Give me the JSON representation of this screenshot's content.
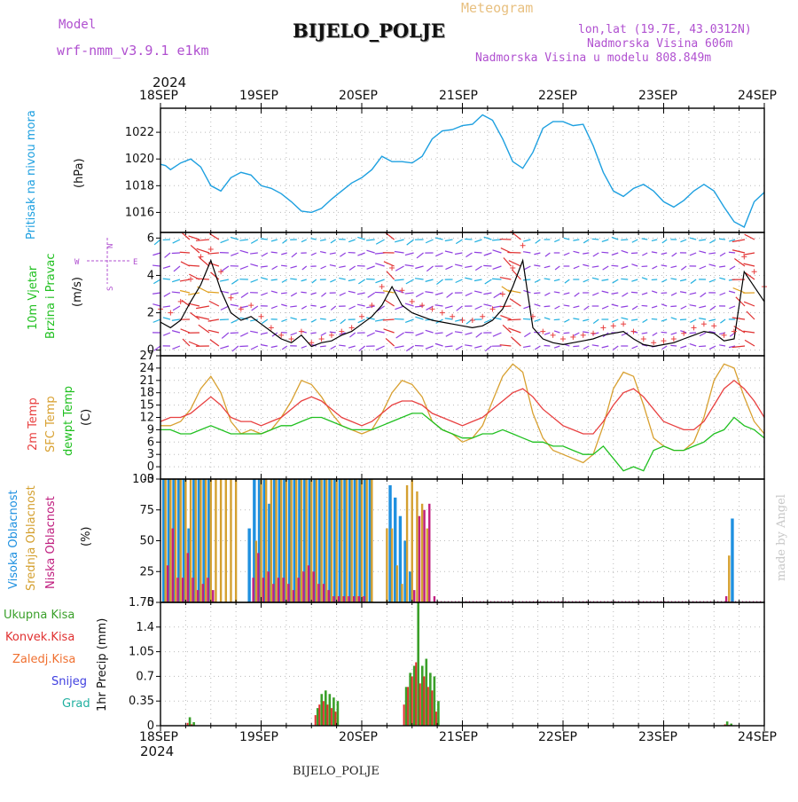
{
  "header": {
    "model_label": "Model",
    "model_name": "wrf-nmm_v3.9.1 e1km",
    "title": "BIJELO_POLJE",
    "product": "Meteogram",
    "coords": "lon,lat (19.7E, 43.0312N)",
    "elevation": "Nadmorska Visina 606m",
    "model_elevation": "Nadmorska Visina u modelu 808.849m",
    "year": "2024",
    "footer_station": "BIJELO_POLJE",
    "credit": "made by Angel"
  },
  "colors": {
    "pressure": "#1ea0e0",
    "wind_speed": "#000000",
    "gust": "#e84040",
    "temp_2m": "#e84040",
    "temp_sfc": "#d8a030",
    "dewpoint": "#20c020",
    "cloud_high": "#1e90e0",
    "cloud_mid": "#d4a030",
    "cloud_low": "#c02080",
    "precip_total": "#3aa02a",
    "precip_conv": "#e03030",
    "precip_frozen": "#f07030",
    "snow": "#4040e0",
    "hail": "#20b0a0"
  },
  "chart_data": [
    {
      "type": "line",
      "panel": "pressure",
      "ylabel_1": "Pritisak na nivou mora",
      "ylabel_2": "(hPa)",
      "x_ticks": [
        "18SEP",
        "19SEP",
        "20SEP",
        "21SEP",
        "22SEP",
        "23SEP",
        "24SEP"
      ],
      "ylim": [
        1014.5,
        1023.8
      ],
      "y_ticks": [
        1016,
        1018,
        1020,
        1022
      ],
      "grid": true,
      "x_days": [
        0,
        0.05,
        0.1,
        0.2,
        0.3,
        0.4,
        0.5,
        0.6,
        0.7,
        0.8,
        0.9,
        1.0,
        1.1,
        1.2,
        1.3,
        1.4,
        1.5,
        1.6,
        1.7,
        1.8,
        1.9,
        2.0,
        2.1,
        2.2,
        2.3,
        2.4,
        2.5,
        2.6,
        2.7,
        2.8,
        2.9,
        3.0,
        3.1,
        3.2,
        3.3,
        3.4,
        3.5,
        3.6,
        3.7,
        3.8,
        3.9,
        4.0,
        4.1,
        4.2,
        4.3,
        4.4,
        4.5,
        4.6,
        4.7,
        4.8,
        4.9,
        5.0,
        5.1,
        5.2,
        5.3,
        5.4,
        5.5,
        5.6,
        5.7,
        5.8,
        5.9,
        6.0
      ],
      "values": [
        1019.6,
        1019.5,
        1019.2,
        1019.7,
        1020.0,
        1019.4,
        1018.0,
        1017.6,
        1018.6,
        1019.0,
        1018.8,
        1018.0,
        1017.8,
        1017.4,
        1016.8,
        1016.1,
        1016.0,
        1016.3,
        1017.0,
        1017.6,
        1018.2,
        1018.6,
        1019.2,
        1020.2,
        1019.8,
        1019.8,
        1019.7,
        1020.2,
        1021.5,
        1022.1,
        1022.2,
        1022.5,
        1022.6,
        1023.3,
        1022.9,
        1021.5,
        1019.8,
        1019.3,
        1020.5,
        1022.3,
        1022.8,
        1022.8,
        1022.5,
        1022.6,
        1021.0,
        1019.0,
        1017.6,
        1017.2,
        1017.8,
        1018.1,
        1017.6,
        1016.8,
        1016.4,
        1016.9,
        1017.6,
        1018.1,
        1017.6,
        1016.4,
        1015.3,
        1014.9,
        1016.8,
        1017.5
      ]
    },
    {
      "type": "line",
      "panel": "wind",
      "ylabel_1": "10m Vjetar",
      "ylabel_2": "Brzina i Pravac",
      "ylabel_3": "(m/s)",
      "compass": [
        "N",
        "W",
        "E",
        "S"
      ],
      "ylim": [
        -0.3,
        6.3
      ],
      "y_ticks": [
        0,
        2,
        4,
        6
      ],
      "grid": true,
      "x_days": [
        0,
        0.1,
        0.2,
        0.3,
        0.4,
        0.5,
        0.6,
        0.7,
        0.8,
        0.9,
        1.0,
        1.1,
        1.2,
        1.3,
        1.4,
        1.5,
        1.6,
        1.7,
        1.8,
        1.9,
        2.0,
        2.1,
        2.2,
        2.3,
        2.4,
        2.5,
        2.6,
        2.7,
        2.8,
        2.9,
        3.0,
        3.1,
        3.2,
        3.3,
        3.4,
        3.5,
        3.6,
        3.7,
        3.8,
        3.9,
        4.0,
        4.1,
        4.2,
        4.3,
        4.4,
        4.5,
        4.6,
        4.7,
        4.8,
        4.9,
        5.0,
        5.1,
        5.2,
        5.3,
        5.4,
        5.5,
        5.6,
        5.7,
        5.8,
        5.9,
        6.0
      ],
      "series": [
        {
          "values": [
            1.5,
            1.2,
            1.6,
            2.6,
            3.5,
            4.8,
            3.2,
            2.0,
            1.6,
            1.8,
            1.4,
            1.0,
            0.6,
            0.4,
            0.8,
            0.2,
            0.4,
            0.5,
            0.8,
            1.0,
            1.4,
            1.8,
            2.4,
            3.4,
            2.4,
            2.0,
            1.8,
            1.6,
            1.5,
            1.4,
            1.3,
            1.2,
            1.3,
            1.6,
            2.2,
            3.4,
            4.8,
            1.2,
            0.6,
            0.4,
            0.3,
            0.4,
            0.5,
            0.6,
            0.8,
            0.9,
            1.0,
            0.6,
            0.3,
            0.2,
            0.3,
            0.4,
            0.6,
            0.8,
            1.0,
            0.9,
            0.5,
            0.6,
            4.2,
            3.4,
            2.6
          ]
        },
        {
          "values": [
            2.2,
            2.0,
            2.6,
            3.8,
            5.0,
            5.4,
            4.2,
            2.8,
            2.2,
            2.4,
            1.8,
            1.2,
            0.8,
            0.6,
            1.0,
            0.4,
            0.6,
            0.8,
            1.0,
            1.2,
            1.8,
            2.4,
            3.4,
            4.4,
            3.2,
            2.6,
            2.4,
            2.2,
            2.0,
            1.8,
            1.6,
            1.6,
            1.8,
            2.2,
            3.0,
            4.4,
            5.6,
            1.8,
            1.0,
            0.8,
            0.6,
            0.7,
            0.8,
            0.9,
            1.2,
            1.3,
            1.4,
            1.0,
            0.6,
            0.4,
            0.5,
            0.6,
            0.9,
            1.2,
            1.4,
            1.3,
            0.8,
            1.0,
            5.0,
            4.2,
            3.4
          ]
        }
      ]
    },
    {
      "type": "line",
      "panel": "temperature",
      "ylabel_1": "2m Temp",
      "ylabel_2": "SFC Temp",
      "ylabel_3": "dewpt Temp",
      "ylabel_4": "(C)",
      "ylim": [
        -3,
        27
      ],
      "y_ticks": [
        -3,
        0,
        3,
        6,
        9,
        12,
        15,
        18,
        21,
        24,
        27
      ],
      "grid": true,
      "x_days": [
        0,
        0.1,
        0.2,
        0.3,
        0.4,
        0.5,
        0.6,
        0.7,
        0.8,
        0.9,
        1.0,
        1.1,
        1.2,
        1.3,
        1.4,
        1.5,
        1.6,
        1.7,
        1.8,
        1.9,
        2.0,
        2.1,
        2.2,
        2.3,
        2.4,
        2.5,
        2.6,
        2.7,
        2.8,
        2.9,
        3.0,
        3.1,
        3.2,
        3.3,
        3.4,
        3.5,
        3.6,
        3.7,
        3.8,
        3.9,
        4.0,
        4.1,
        4.2,
        4.3,
        4.4,
        4.5,
        4.6,
        4.7,
        4.8,
        4.9,
        5.0,
        5.1,
        5.2,
        5.3,
        5.4,
        5.5,
        5.6,
        5.7,
        5.8,
        5.9,
        6.0
      ],
      "series": [
        {
          "name": "2m Temp",
          "values": [
            11,
            12,
            12,
            13,
            15,
            17,
            15,
            12,
            11,
            11,
            10,
            11,
            12,
            14,
            16,
            17,
            16,
            14,
            12,
            11,
            10,
            11,
            13,
            15,
            16,
            16,
            15,
            13,
            12,
            11,
            10,
            11,
            12,
            14,
            16,
            18,
            19,
            17,
            14,
            12,
            10,
            9,
            8,
            8,
            11,
            15,
            18,
            19,
            17,
            14,
            11,
            10,
            9,
            9,
            11,
            15,
            19,
            21,
            19,
            16,
            12
          ]
        },
        {
          "name": "SFC Temp",
          "values": [
            10,
            10,
            11,
            14,
            19,
            22,
            18,
            11,
            8,
            9,
            8,
            9,
            12,
            16,
            21,
            20,
            17,
            13,
            10,
            9,
            8,
            9,
            13,
            18,
            21,
            20,
            17,
            11,
            9,
            8,
            6,
            7,
            10,
            16,
            22,
            25,
            23,
            13,
            7,
            4,
            3,
            2,
            1,
            3,
            10,
            19,
            23,
            22,
            15,
            7,
            5,
            4,
            4,
            6,
            12,
            21,
            25,
            24,
            17,
            11,
            8
          ]
        },
        {
          "name": "dewpt Temp",
          "values": [
            9,
            9,
            8,
            8,
            9,
            10,
            9,
            8,
            8,
            8,
            8,
            9,
            10,
            10,
            11,
            12,
            12,
            11,
            10,
            9,
            9,
            9,
            10,
            11,
            12,
            13,
            13,
            11,
            9,
            8,
            7,
            7,
            8,
            8,
            9,
            8,
            7,
            6,
            6,
            5,
            5,
            4,
            3,
            3,
            5,
            2,
            -1,
            0,
            -1,
            4,
            5,
            4,
            4,
            5,
            6,
            8,
            9,
            12,
            10,
            9,
            7
          ]
        }
      ]
    },
    {
      "type": "bar",
      "panel": "cloud_cover",
      "ylabel_1": "Visoka Oblacnost",
      "ylabel_2": "Srednja Oblacnost",
      "ylabel_3": "Niska Oblacnost",
      "ylabel_4": "(%)",
      "ylim": [
        0,
        100
      ],
      "y_ticks": [
        0,
        25,
        50,
        75,
        100
      ],
      "grid": true,
      "x_days": [
        0.05,
        0.1,
        0.15,
        0.2,
        0.25,
        0.3,
        0.35,
        0.4,
        0.45,
        0.5,
        0.55,
        0.6,
        0.65,
        0.7,
        0.75,
        0.8,
        0.85,
        0.9,
        0.95,
        1.0,
        1.05,
        1.1,
        1.15,
        1.2,
        1.25,
        1.3,
        1.35,
        1.4,
        1.45,
        1.5,
        1.55,
        1.6,
        1.65,
        1.7,
        1.75,
        1.8,
        1.85,
        1.9,
        1.95,
        2.0,
        2.05,
        2.1,
        2.15,
        2.2,
        2.25,
        2.3,
        2.35,
        2.4,
        2.45,
        2.5,
        2.55,
        2.6,
        2.65,
        2.7,
        5.55,
        5.6,
        5.65,
        5.7
      ],
      "series": [
        {
          "name": "Visoka Oblacnost",
          "values": [
            100,
            100,
            100,
            100,
            100,
            60,
            100,
            100,
            100,
            100,
            0,
            0,
            0,
            0,
            0,
            0,
            0,
            60,
            100,
            100,
            100,
            80,
            100,
            100,
            100,
            100,
            100,
            100,
            100,
            100,
            100,
            100,
            100,
            100,
            100,
            100,
            100,
            100,
            100,
            100,
            100,
            100,
            0,
            0,
            0,
            95,
            85,
            70,
            50,
            25,
            0,
            0,
            0,
            0,
            0,
            0,
            0,
            68
          ]
        },
        {
          "name": "Srednja Oblacnost",
          "values": [
            100,
            100,
            100,
            100,
            100,
            100,
            100,
            100,
            100,
            100,
            100,
            100,
            100,
            100,
            100,
            0,
            0,
            0,
            50,
            100,
            100,
            100,
            100,
            100,
            100,
            100,
            100,
            100,
            100,
            100,
            100,
            100,
            100,
            100,
            100,
            100,
            100,
            100,
            100,
            100,
            100,
            100,
            0,
            0,
            60,
            60,
            30,
            15,
            95,
            100,
            90,
            80,
            60,
            0,
            0,
            0,
            38,
            0
          ]
        },
        {
          "name": "Niska Oblacnost",
          "values": [
            30,
            60,
            20,
            20,
            40,
            20,
            10,
            15,
            20,
            10,
            0,
            0,
            0,
            0,
            0,
            0,
            0,
            20,
            40,
            20,
            25,
            15,
            20,
            20,
            15,
            10,
            20,
            25,
            30,
            25,
            15,
            15,
            10,
            5,
            5,
            5,
            5,
            5,
            5,
            5,
            0,
            0,
            0,
            0,
            0,
            0,
            0,
            0,
            0,
            10,
            70,
            75,
            80,
            5,
            0,
            5,
            0,
            0
          ]
        }
      ]
    },
    {
      "type": "bar",
      "panel": "precipitation",
      "ylabel_1": "1hr Precip (mm)",
      "legend": [
        "Ukupna Kisa",
        "Konvek.Kisa",
        "Zaledj.Kisa",
        "Snijeg",
        "Grad"
      ],
      "ylim": [
        0,
        1.75
      ],
      "y_ticks": [
        0,
        0.35,
        0.7,
        1.05,
        1.4,
        1.75
      ],
      "y_tick_labels": [
        "0",
        "0.35",
        "0.7",
        "1.05",
        "1.4",
        "1.75"
      ],
      "grid": true,
      "x_ticks": [
        "18SEP",
        "19SEP",
        "20SEP",
        "21SEP",
        "22SEP",
        "23SEP",
        "24SEP"
      ],
      "x_year": "2024",
      "x_days": [
        0.28,
        0.32,
        1.55,
        1.59,
        1.63,
        1.67,
        1.71,
        1.75,
        2.43,
        2.47,
        2.51,
        2.55,
        2.59,
        2.63,
        2.67,
        2.71,
        2.75,
        5.62,
        5.66
      ],
      "series": [
        {
          "name": "Ukupna Kisa",
          "values": [
            0.12,
            0.05,
            0.25,
            0.45,
            0.5,
            0.45,
            0.4,
            0.35,
            0.55,
            0.75,
            0.85,
            1.75,
            0.85,
            0.95,
            0.75,
            0.7,
            0.35,
            0.06,
            0.03
          ]
        },
        {
          "name": "Konvek.Kisa",
          "values": [
            0.04,
            0.02,
            0.15,
            0.3,
            0.35,
            0.3,
            0.25,
            0.2,
            0.3,
            0.55,
            0.7,
            0.9,
            0.6,
            0.7,
            0.55,
            0.5,
            0.2,
            0.02,
            0.01
          ]
        }
      ]
    }
  ]
}
